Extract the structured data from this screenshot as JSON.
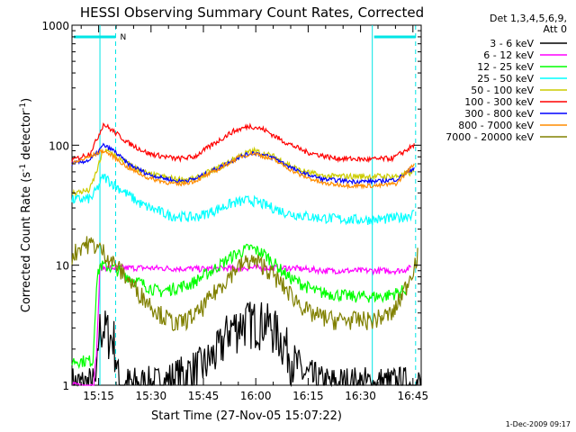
{
  "chart_data": {
    "type": "line",
    "title": "HESSI Observing Summary Count Rates, Corrected",
    "xlabel": "Start Time (27-Nov-05 15:07:22)",
    "ylabel_main": "Corrected Count Rate (s",
    "ylabel_sup1": "-1",
    "ylabel_mid": " detector",
    "ylabel_sup2": "-1",
    "ylabel_end": ")",
    "y_scale": "log",
    "ylim": [
      1,
      1000
    ],
    "xlim_minutes": [
      0,
      100
    ],
    "x_ticks": [
      {
        "minute": 7.63,
        "label": "15:15"
      },
      {
        "minute": 22.63,
        "label": "15:30"
      },
      {
        "minute": 37.63,
        "label": "15:45"
      },
      {
        "minute": 52.63,
        "label": "16:00"
      },
      {
        "minute": 67.63,
        "label": "16:15"
      },
      {
        "minute": 82.63,
        "label": "16:30"
      },
      {
        "minute": 97.63,
        "label": "16:45"
      }
    ],
    "y_ticks": [
      {
        "value": 1,
        "label": "1"
      },
      {
        "value": 10,
        "label": "10"
      },
      {
        "value": 100,
        "label": "100"
      },
      {
        "value": 1000,
        "label": "1000"
      }
    ],
    "legend_header": [
      "Det 1,3,4,5,6,9,",
      "Att 0"
    ],
    "legend_placement": "right",
    "series": [
      {
        "name": "3 - 6 keV",
        "color": "#000000",
        "points": [
          [
            0,
            1
          ],
          [
            6.3,
            1
          ],
          [
            7,
            1
          ],
          [
            7.7,
            3
          ],
          [
            10,
            3
          ],
          [
            11,
            2.5
          ],
          [
            12,
            2.5
          ],
          [
            13.5,
            1
          ],
          [
            25,
            1
          ],
          [
            38,
            1.5
          ],
          [
            42,
            2
          ],
          [
            45,
            3
          ],
          [
            50,
            3.5
          ],
          [
            55,
            3.5
          ],
          [
            58,
            3
          ],
          [
            62,
            2
          ],
          [
            64,
            1.5
          ],
          [
            67,
            1.2
          ],
          [
            72,
            1
          ],
          [
            100,
            1
          ]
        ]
      },
      {
        "name": "6 - 12 keV",
        "color": "#ff00ff",
        "points": [
          [
            0,
            1
          ],
          [
            6.2,
            1
          ],
          [
            7.1,
            2
          ],
          [
            8,
            9.5
          ],
          [
            12,
            9.5
          ],
          [
            20,
            9.5
          ],
          [
            38,
            9.3
          ],
          [
            48,
            9.5
          ],
          [
            55,
            9.5
          ],
          [
            62,
            9.5
          ],
          [
            73,
            9
          ],
          [
            85,
            9
          ],
          [
            94,
            9
          ],
          [
            97,
            9.5
          ]
        ]
      },
      {
        "name": "12 - 25 keV",
        "color": "#00ff00",
        "points": [
          [
            0,
            1.6
          ],
          [
            6,
            1.6
          ],
          [
            7,
            7
          ],
          [
            8,
            10
          ],
          [
            12,
            9.5
          ],
          [
            18,
            7.5
          ],
          [
            25,
            6
          ],
          [
            34,
            7
          ],
          [
            40,
            9
          ],
          [
            46,
            12
          ],
          [
            51,
            14
          ],
          [
            55,
            12.5
          ],
          [
            62,
            8
          ],
          [
            70,
            6
          ],
          [
            80,
            5.5
          ],
          [
            89,
            5.5
          ],
          [
            94,
            6
          ],
          [
            96,
            6.5
          ]
        ]
      },
      {
        "name": "25 - 50 keV",
        "color": "#00ffff",
        "points": [
          [
            0,
            35
          ],
          [
            5.5,
            36
          ],
          [
            7.5,
            45
          ],
          [
            9,
            55
          ],
          [
            13,
            45
          ],
          [
            20,
            32
          ],
          [
            28,
            26
          ],
          [
            35,
            25
          ],
          [
            40,
            28
          ],
          [
            46,
            33
          ],
          [
            51,
            35
          ],
          [
            55,
            32
          ],
          [
            62,
            27
          ],
          [
            70,
            25
          ],
          [
            80,
            24
          ],
          [
            88,
            24
          ],
          [
            94,
            25
          ],
          [
            98,
            27
          ]
        ]
      },
      {
        "name": "50 - 100 keV",
        "color": "#cccc00",
        "points": [
          [
            0,
            40
          ],
          [
            5,
            42
          ],
          [
            7,
            60
          ],
          [
            9,
            90
          ],
          [
            12,
            85
          ],
          [
            16,
            70
          ],
          [
            22,
            57
          ],
          [
            30,
            52
          ],
          [
            35,
            52
          ],
          [
            42,
            65
          ],
          [
            48,
            82
          ],
          [
            52,
            90
          ],
          [
            58,
            80
          ],
          [
            65,
            62
          ],
          [
            72,
            55
          ],
          [
            80,
            55
          ],
          [
            88,
            55
          ],
          [
            93,
            55
          ],
          [
            98,
            60
          ]
        ]
      },
      {
        "name": "100 - 300 keV",
        "color": "#ff0000",
        "points": [
          [
            0,
            75
          ],
          [
            5,
            85
          ],
          [
            7,
            110
          ],
          [
            9,
            150
          ],
          [
            12,
            130
          ],
          [
            16,
            105
          ],
          [
            22,
            85
          ],
          [
            30,
            77
          ],
          [
            35,
            80
          ],
          [
            40,
            100
          ],
          [
            46,
            130
          ],
          [
            51,
            145
          ],
          [
            55,
            135
          ],
          [
            60,
            110
          ],
          [
            67,
            88
          ],
          [
            75,
            78
          ],
          [
            85,
            76
          ],
          [
            92,
            78
          ],
          [
            98,
            100
          ]
        ]
      },
      {
        "name": "300 - 800 keV",
        "color": "#0000ff",
        "points": [
          [
            0,
            70
          ],
          [
            5,
            75
          ],
          [
            7,
            85
          ],
          [
            9,
            100
          ],
          [
            12,
            90
          ],
          [
            16,
            70
          ],
          [
            22,
            57
          ],
          [
            30,
            50
          ],
          [
            35,
            52
          ],
          [
            42,
            65
          ],
          [
            48,
            80
          ],
          [
            52,
            87
          ],
          [
            58,
            78
          ],
          [
            65,
            60
          ],
          [
            72,
            52
          ],
          [
            80,
            50
          ],
          [
            88,
            50
          ],
          [
            93,
            52
          ],
          [
            98,
            65
          ]
        ]
      },
      {
        "name": "800 - 7000 keV",
        "color": "#ff8c00",
        "points": [
          [
            0,
            70
          ],
          [
            5,
            80
          ],
          [
            7,
            85
          ],
          [
            9,
            90
          ],
          [
            12,
            80
          ],
          [
            16,
            65
          ],
          [
            22,
            53
          ],
          [
            30,
            47
          ],
          [
            35,
            50
          ],
          [
            42,
            63
          ],
          [
            48,
            80
          ],
          [
            52,
            86
          ],
          [
            58,
            75
          ],
          [
            65,
            57
          ],
          [
            72,
            48
          ],
          [
            80,
            46
          ],
          [
            88,
            46
          ],
          [
            93,
            48
          ],
          [
            98,
            70
          ]
        ]
      },
      {
        "name": "7000 - 20000 keV",
        "color": "#808000",
        "points": [
          [
            0,
            12
          ],
          [
            3,
            15
          ],
          [
            6,
            15
          ],
          [
            9,
            13
          ],
          [
            14,
            9
          ],
          [
            19,
            6
          ],
          [
            25,
            4
          ],
          [
            30,
            3.2
          ],
          [
            36,
            4
          ],
          [
            42,
            6.5
          ],
          [
            47,
            9.5
          ],
          [
            51,
            11
          ],
          [
            55,
            10
          ],
          [
            62,
            6
          ],
          [
            68,
            4
          ],
          [
            75,
            3.5
          ],
          [
            80,
            3.5
          ],
          [
            86,
            3.5
          ],
          [
            92,
            4
          ],
          [
            96,
            7
          ],
          [
            99,
            12
          ]
        ]
      }
    ],
    "annotations": [
      {
        "type": "bar",
        "label": "N",
        "x_from": 0,
        "x_to": 12.5
      }
    ],
    "markers_minutes": [
      8.0,
      12.5,
      86.0,
      98.4
    ],
    "bars_minutes": [
      [
        0,
        12.5
      ],
      [
        86.0,
        98.4
      ]
    ],
    "footer_date": "1-Dec-2009 09:17"
  }
}
